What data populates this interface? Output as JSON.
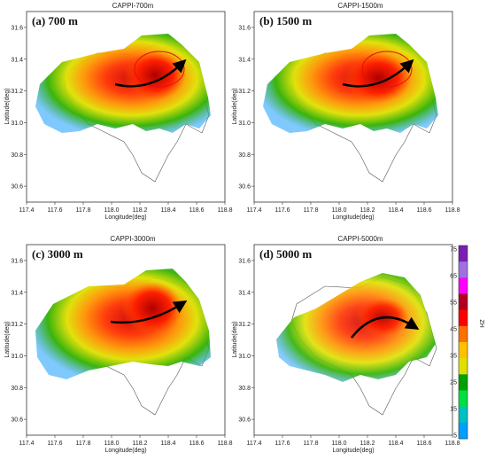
{
  "panels": [
    {
      "title": "CAPPI-700m",
      "label": "(a) 700 m"
    },
    {
      "title": "CAPPI-1500m",
      "label": "(b) 1500 m"
    },
    {
      "title": "CAPPI-3000m",
      "label": "(c) 3000 m"
    },
    {
      "title": "CAPPI-5000m",
      "label": "(d) 5000 m"
    }
  ],
  "axes": {
    "xlabel": "Longitude(deg)",
    "ylabel": "Latitude(deg)",
    "xticks": [
      "117.4",
      "117.6",
      "117.8",
      "118.0",
      "118.2",
      "118.4",
      "118.6",
      "118.8"
    ],
    "yticks": [
      "31.6",
      "31.4",
      "31.2",
      "31.0",
      "30.8",
      "30.6"
    ],
    "xlim": [
      117.4,
      118.8
    ],
    "ylim": [
      30.5,
      31.7
    ]
  },
  "colorbar": {
    "label": "ZH",
    "ticks": [
      "75",
      "65",
      "55",
      "45",
      "35",
      "25",
      "15",
      "5"
    ],
    "colors": [
      "#7a1fb0",
      "#a070e0",
      "#ff00ff",
      "#b00020",
      "#ff0000",
      "#ff7000",
      "#ffc000",
      "#e0e000",
      "#00a000",
      "#00e040",
      "#00c0c0",
      "#00a0ff"
    ]
  }
}
